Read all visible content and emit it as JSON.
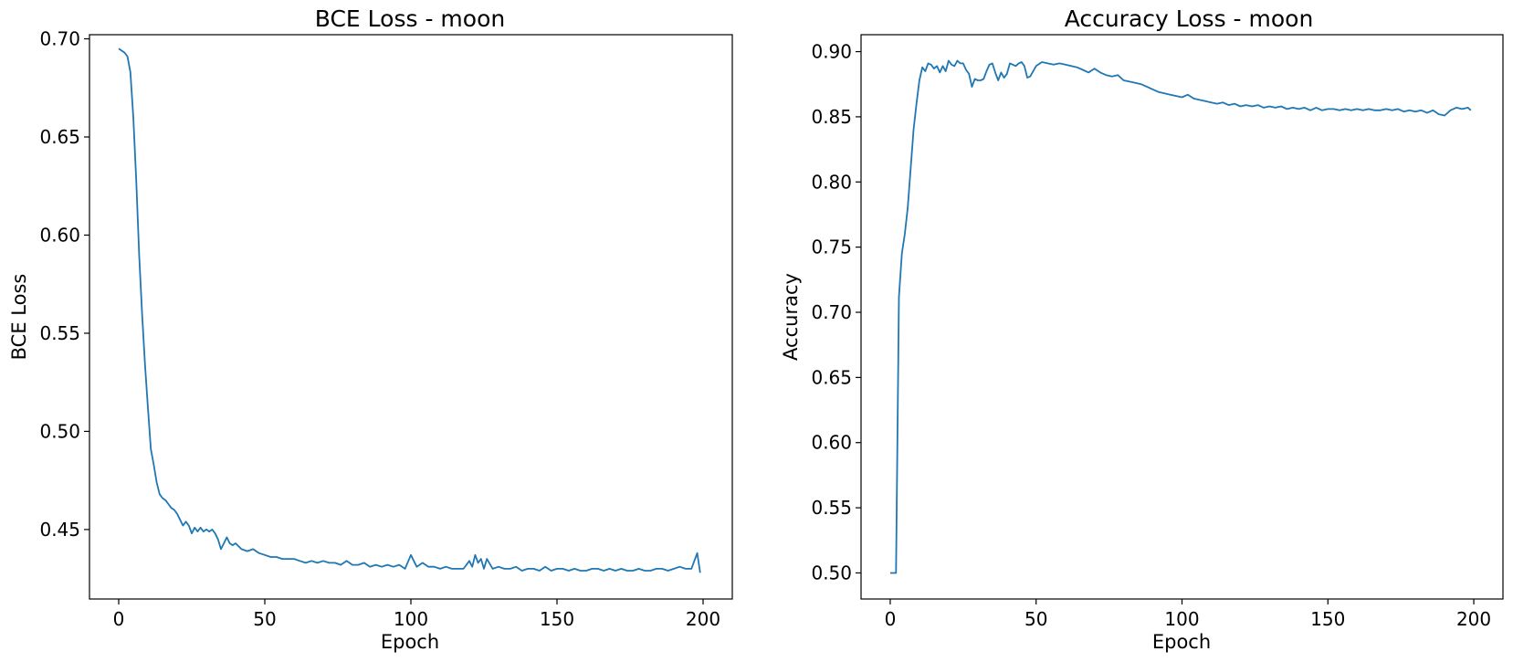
{
  "style": {
    "line_color": "#1f77b4",
    "axis_color": "#000000",
    "background": "#ffffff"
  },
  "chart_data": [
    {
      "type": "line",
      "title": "BCE Loss - moon",
      "xlabel": "Epoch",
      "ylabel": "BCE Loss",
      "xlim": [
        -10,
        210
      ],
      "ylim": [
        0.4146,
        0.7021
      ],
      "grid": false,
      "legend": "none",
      "xticks": [
        0,
        50,
        100,
        150,
        200
      ],
      "xtick_labels": [
        "0",
        "50",
        "100",
        "150",
        "200"
      ],
      "yticks": [
        0.45,
        0.5,
        0.55,
        0.6,
        0.65,
        0.7
      ],
      "ytick_labels": [
        "0.45",
        "0.50",
        "0.55",
        "0.60",
        "0.65",
        "0.70"
      ],
      "series": [
        {
          "x": [
            0,
            2,
            3,
            4,
            5,
            6,
            7,
            8,
            9,
            10,
            11,
            12,
            13,
            14,
            15,
            16,
            17,
            18,
            19,
            20,
            21,
            22,
            23,
            24,
            25,
            26,
            27,
            28,
            29,
            30,
            31,
            32,
            33,
            34,
            35,
            36,
            37,
            38,
            39,
            40,
            42,
            44,
            46,
            48,
            50,
            52,
            54,
            56,
            58,
            60,
            62,
            64,
            66,
            68,
            70,
            72,
            74,
            76,
            78,
            80,
            82,
            84,
            86,
            88,
            90,
            92,
            94,
            96,
            98,
            100,
            102,
            104,
            106,
            108,
            110,
            112,
            114,
            116,
            118,
            120,
            121,
            122,
            123,
            124,
            125,
            126,
            128,
            130,
            132,
            134,
            136,
            138,
            140,
            142,
            144,
            146,
            148,
            150,
            152,
            154,
            156,
            158,
            160,
            162,
            164,
            166,
            168,
            170,
            172,
            174,
            176,
            178,
            180,
            182,
            184,
            186,
            188,
            190,
            192,
            194,
            196,
            198,
            199
          ],
          "y": [
            0.695,
            0.693,
            0.691,
            0.683,
            0.66,
            0.628,
            0.59,
            0.56,
            0.534,
            0.512,
            0.491,
            0.483,
            0.474,
            0.468,
            0.466,
            0.465,
            0.463,
            0.461,
            0.46,
            0.458,
            0.455,
            0.452,
            0.454,
            0.452,
            0.448,
            0.451,
            0.449,
            0.451,
            0.449,
            0.45,
            0.449,
            0.45,
            0.448,
            0.445,
            0.44,
            0.443,
            0.446,
            0.443,
            0.442,
            0.443,
            0.44,
            0.439,
            0.44,
            0.438,
            0.437,
            0.436,
            0.436,
            0.435,
            0.435,
            0.435,
            0.434,
            0.433,
            0.434,
            0.433,
            0.434,
            0.433,
            0.433,
            0.432,
            0.434,
            0.432,
            0.432,
            0.433,
            0.431,
            0.432,
            0.431,
            0.432,
            0.431,
            0.432,
            0.43,
            0.437,
            0.431,
            0.433,
            0.431,
            0.431,
            0.43,
            0.431,
            0.43,
            0.43,
            0.43,
            0.434,
            0.431,
            0.437,
            0.433,
            0.435,
            0.43,
            0.435,
            0.43,
            0.431,
            0.43,
            0.43,
            0.431,
            0.429,
            0.43,
            0.43,
            0.429,
            0.431,
            0.429,
            0.43,
            0.43,
            0.429,
            0.43,
            0.429,
            0.429,
            0.43,
            0.43,
            0.429,
            0.43,
            0.429,
            0.43,
            0.429,
            0.429,
            0.43,
            0.429,
            0.429,
            0.43,
            0.43,
            0.429,
            0.43,
            0.431,
            0.43,
            0.43,
            0.438,
            0.428
          ]
        }
      ]
    },
    {
      "type": "line",
      "title": "Accuracy Loss - moon",
      "xlabel": "Epoch",
      "ylabel": "Accuracy",
      "xlim": [
        -10,
        210
      ],
      "ylim": [
        0.48,
        0.913
      ],
      "grid": false,
      "legend": "none",
      "xticks": [
        0,
        50,
        100,
        150,
        200
      ],
      "xtick_labels": [
        "0",
        "50",
        "100",
        "150",
        "200"
      ],
      "yticks": [
        0.5,
        0.55,
        0.6,
        0.65,
        0.7,
        0.75,
        0.8,
        0.85,
        0.9
      ],
      "ytick_labels": [
        "0.50",
        "0.55",
        "0.60",
        "0.65",
        "0.70",
        "0.75",
        "0.80",
        "0.85",
        "0.90"
      ],
      "series": [
        {
          "x": [
            0,
            1,
            2,
            3,
            4,
            5,
            6,
            7,
            8,
            9,
            10,
            11,
            12,
            13,
            14,
            15,
            16,
            17,
            18,
            19,
            20,
            21,
            22,
            23,
            24,
            25,
            26,
            27,
            28,
            29,
            30,
            31,
            32,
            33,
            34,
            35,
            36,
            37,
            38,
            39,
            40,
            41,
            42,
            43,
            44,
            45,
            46,
            47,
            48,
            50,
            52,
            54,
            56,
            58,
            60,
            62,
            64,
            66,
            68,
            70,
            72,
            74,
            76,
            78,
            80,
            82,
            84,
            86,
            88,
            90,
            92,
            94,
            96,
            98,
            100,
            102,
            104,
            106,
            108,
            110,
            112,
            114,
            116,
            118,
            120,
            122,
            124,
            126,
            128,
            130,
            132,
            134,
            136,
            138,
            140,
            142,
            144,
            146,
            148,
            150,
            152,
            154,
            156,
            158,
            160,
            162,
            164,
            166,
            168,
            170,
            172,
            174,
            176,
            178,
            180,
            182,
            184,
            186,
            188,
            190,
            192,
            194,
            196,
            198,
            199
          ],
          "y": [
            0.5,
            0.5,
            0.5,
            0.712,
            0.745,
            0.76,
            0.78,
            0.81,
            0.84,
            0.86,
            0.878,
            0.888,
            0.885,
            0.891,
            0.89,
            0.887,
            0.889,
            0.884,
            0.889,
            0.885,
            0.893,
            0.89,
            0.889,
            0.893,
            0.891,
            0.891,
            0.886,
            0.883,
            0.873,
            0.879,
            0.878,
            0.878,
            0.879,
            0.885,
            0.89,
            0.891,
            0.884,
            0.878,
            0.884,
            0.88,
            0.883,
            0.891,
            0.89,
            0.889,
            0.891,
            0.892,
            0.889,
            0.88,
            0.881,
            0.889,
            0.892,
            0.891,
            0.89,
            0.891,
            0.89,
            0.889,
            0.888,
            0.886,
            0.884,
            0.887,
            0.884,
            0.882,
            0.881,
            0.882,
            0.878,
            0.877,
            0.876,
            0.875,
            0.873,
            0.871,
            0.869,
            0.868,
            0.867,
            0.866,
            0.865,
            0.867,
            0.864,
            0.863,
            0.862,
            0.861,
            0.86,
            0.861,
            0.859,
            0.86,
            0.858,
            0.859,
            0.858,
            0.859,
            0.857,
            0.858,
            0.857,
            0.858,
            0.856,
            0.857,
            0.856,
            0.857,
            0.855,
            0.857,
            0.855,
            0.856,
            0.856,
            0.855,
            0.856,
            0.855,
            0.856,
            0.855,
            0.856,
            0.855,
            0.855,
            0.856,
            0.855,
            0.856,
            0.854,
            0.855,
            0.854,
            0.855,
            0.853,
            0.855,
            0.852,
            0.851,
            0.855,
            0.857,
            0.856,
            0.857,
            0.855
          ]
        }
      ]
    }
  ]
}
